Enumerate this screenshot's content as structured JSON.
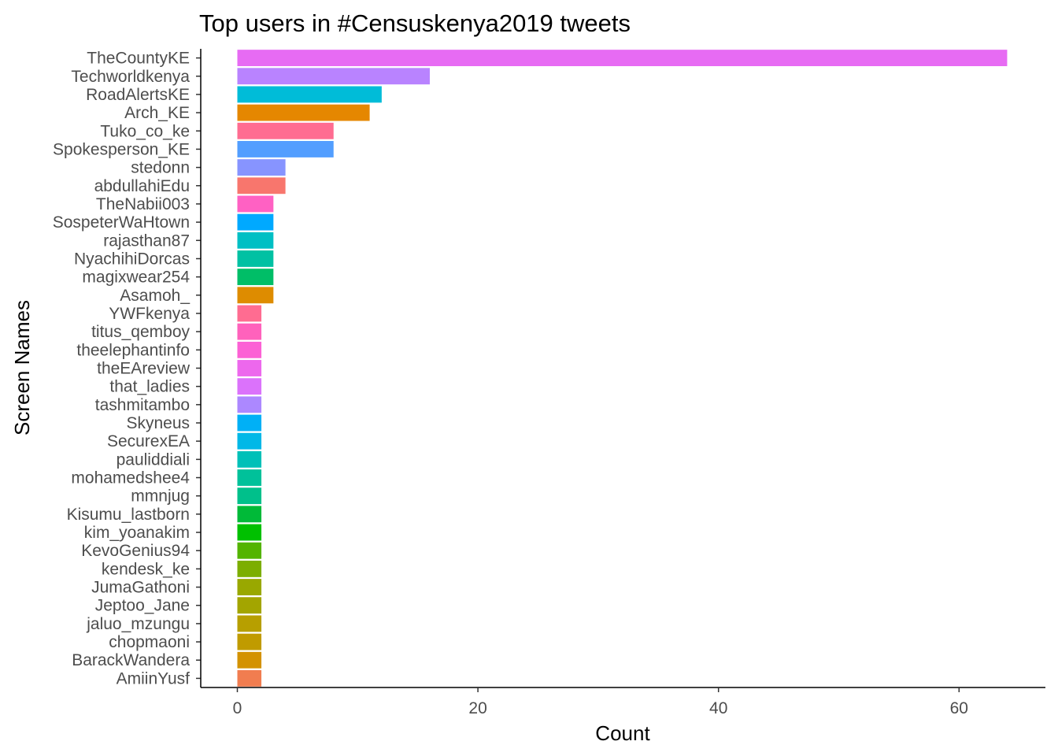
{
  "chart_data": {
    "type": "bar",
    "orientation": "horizontal",
    "title": "Top users in #Censuskenya2019 tweets",
    "xlabel": "Count",
    "ylabel": "Screen Names",
    "xlim": [
      0,
      67
    ],
    "xticks": [
      0,
      20,
      40,
      60
    ],
    "grid": false,
    "legend": "none",
    "categories": [
      "TheCountyKE",
      "Techworldkenya",
      "RoadAlertsKE",
      "Arch_KE",
      "Tuko_co_ke",
      "Spokesperson_KE",
      "stedonn",
      "abdullahiEdu",
      "TheNabii003",
      "SospeterWaHtown",
      "rajasthan87",
      "NyachihiDorcas",
      "magixwear254",
      "Asamoh_",
      "YWFkenya",
      "titus_qemboy",
      "theelephantinfo",
      "theEAreview",
      "that_ladies",
      "tashmitambo",
      "Skyneus",
      "SecurexEA",
      "pauliddiali",
      "mohamedshee4",
      "mmnjug",
      "Kisumu_lastborn",
      "kim_yoanakim",
      "KevoGenius94",
      "kendesk_ke",
      "JumaGathoni",
      "Jeptoo_Jane",
      "jaluo_mzungu",
      "chopmaoni",
      "BarackWandera",
      "AmiinYusf"
    ],
    "values": [
      64,
      16,
      12,
      11,
      8,
      8,
      4,
      4,
      3,
      3,
      3,
      3,
      3,
      3,
      2,
      2,
      2,
      2,
      2,
      2,
      2,
      2,
      2,
      2,
      2,
      2,
      2,
      2,
      2,
      2,
      2,
      2,
      2,
      2,
      2
    ],
    "colors": [
      "#E76BF3",
      "#B983FF",
      "#00BCD8",
      "#E58700",
      "#FF6C91",
      "#529EFF",
      "#8794FF",
      "#F8766D",
      "#FF61C3",
      "#00A9FF",
      "#00BFC4",
      "#00C1A3",
      "#00BE67",
      "#DE8C00",
      "#FF6C91",
      "#FF62BC",
      "#FC61D5",
      "#ED68ED",
      "#DB72FB",
      "#AC88FF",
      "#00B0F6",
      "#00B8E7",
      "#00C0B8",
      "#00C19A",
      "#00C08B",
      "#00BA38",
      "#00C000",
      "#53B400",
      "#7CAE00",
      "#99A800",
      "#A3A500",
      "#B79F00",
      "#C09B00",
      "#D39200",
      "#F17D50"
    ]
  }
}
